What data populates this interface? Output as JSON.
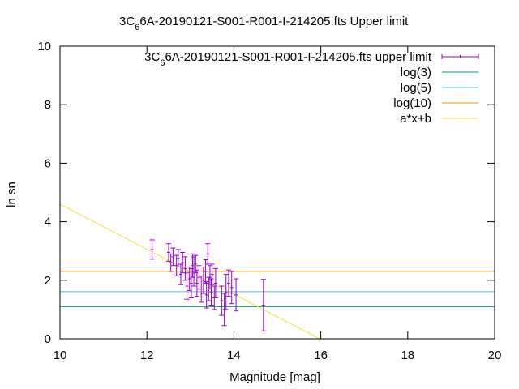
{
  "chart_data": {
    "type": "scatter",
    "title_prefix": "3C",
    "title_sub": "6",
    "title_suffix": "6A-20190121-S001-R001-I-214205.fts Upper limit",
    "xlabel": "Magnitude [mag]",
    "ylabel": "ln sn",
    "xlim": [
      10,
      20
    ],
    "ylim": [
      0,
      10
    ],
    "xticks": [
      "10",
      "12",
      "14",
      "16",
      "18",
      "20"
    ],
    "yticks": [
      "0",
      "2",
      "4",
      "6",
      "8",
      "10"
    ],
    "grid": false,
    "legend_position": "top-right",
    "legend": {
      "points_prefix": "3C",
      "points_sub": "6",
      "points_suffix": "6A-20190121-S001-R001-I-214205.fts upper limit",
      "log3": "log(3)",
      "log5": "log(5)",
      "log10": "log(10)",
      "fit": "a*x+b"
    },
    "colors": {
      "points": "#9400d3",
      "log3": "#009e73",
      "log5": "#56b4e9",
      "log10": "#e69f00",
      "fit": "#f0e442"
    },
    "hlines": [
      {
        "key": "log3",
        "y": 1.0986
      },
      {
        "key": "log5",
        "y": 1.6094
      },
      {
        "key": "log10",
        "y": 2.3026
      }
    ],
    "fit_line": {
      "slope": -0.77,
      "intercept": 12.3
    },
    "points": [
      {
        "x": 12.12,
        "y": 3.05,
        "err": 0.33
      },
      {
        "x": 12.5,
        "y": 2.95,
        "err": 0.3
      },
      {
        "x": 12.55,
        "y": 2.6,
        "err": 0.3
      },
      {
        "x": 12.6,
        "y": 2.8,
        "err": 0.3
      },
      {
        "x": 12.68,
        "y": 2.5,
        "err": 0.35
      },
      {
        "x": 12.72,
        "y": 2.75,
        "err": 0.3
      },
      {
        "x": 12.78,
        "y": 2.2,
        "err": 0.35
      },
      {
        "x": 12.82,
        "y": 2.6,
        "err": 0.35
      },
      {
        "x": 12.88,
        "y": 2.4,
        "err": 0.4
      },
      {
        "x": 12.92,
        "y": 1.8,
        "err": 0.45
      },
      {
        "x": 12.98,
        "y": 2.05,
        "err": 0.4
      },
      {
        "x": 13.02,
        "y": 1.9,
        "err": 0.5
      },
      {
        "x": 13.05,
        "y": 2.5,
        "err": 0.4
      },
      {
        "x": 13.08,
        "y": 2.3,
        "err": 0.5
      },
      {
        "x": 13.12,
        "y": 2.55,
        "err": 0.3
      },
      {
        "x": 13.15,
        "y": 1.9,
        "err": 0.45
      },
      {
        "x": 13.2,
        "y": 2.1,
        "err": 0.4
      },
      {
        "x": 13.25,
        "y": 1.7,
        "err": 0.45
      },
      {
        "x": 13.3,
        "y": 2.0,
        "err": 0.45
      },
      {
        "x": 13.35,
        "y": 2.3,
        "err": 0.4
      },
      {
        "x": 13.37,
        "y": 1.5,
        "err": 0.45
      },
      {
        "x": 13.4,
        "y": 2.9,
        "err": 0.35
      },
      {
        "x": 13.42,
        "y": 1.7,
        "err": 0.4
      },
      {
        "x": 13.45,
        "y": 2.1,
        "err": 0.4
      },
      {
        "x": 13.48,
        "y": 1.6,
        "err": 0.45
      },
      {
        "x": 13.5,
        "y": 2.2,
        "err": 0.35
      },
      {
        "x": 13.55,
        "y": 1.4,
        "err": 0.4
      },
      {
        "x": 13.58,
        "y": 1.9,
        "err": 0.5
      },
      {
        "x": 13.72,
        "y": 1.3,
        "err": 0.5
      },
      {
        "x": 13.78,
        "y": 1.0,
        "err": 0.55
      },
      {
        "x": 13.82,
        "y": 1.6,
        "err": 0.6
      },
      {
        "x": 13.88,
        "y": 1.9,
        "err": 0.45
      },
      {
        "x": 13.95,
        "y": 1.75,
        "err": 0.55
      },
      {
        "x": 14.05,
        "y": 1.5,
        "err": 0.55
      },
      {
        "x": 14.68,
        "y": 1.15,
        "err": 0.88
      }
    ]
  }
}
